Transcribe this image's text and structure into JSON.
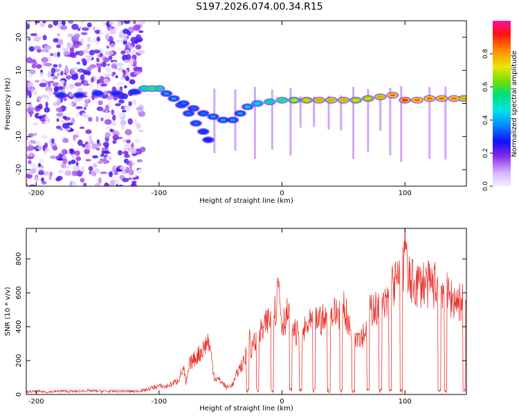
{
  "title": "S197.2026.074.00.34.R15",
  "colors": {
    "snr_line": "#e8342c",
    "background": "#ffffff",
    "axis": "#000000"
  },
  "chart_data": [
    {
      "type": "heatmap",
      "title": "S197.2026.074.00.34.R15",
      "xlabel": "Height of straight line (km)",
      "ylabel": "Frequency (Hz)",
      "xlim": [
        -208,
        150
      ],
      "ylim": [
        -25,
        25
      ],
      "x_ticks": [
        -200,
        -100,
        0,
        100
      ],
      "x_tick_labels": [
        "-200",
        "-100",
        "0",
        "100"
      ],
      "y_ticks": [
        -20,
        -10,
        0,
        10,
        20
      ],
      "y_tick_labels": [
        "-20",
        "-10",
        "0",
        "10",
        "20"
      ],
      "colorbar": {
        "label": "Normalized spectral amplitude",
        "range": [
          0,
          1
        ],
        "ticks": [
          0,
          0.2,
          0.4,
          0.6,
          0.8
        ],
        "tick_labels": [
          "0.0",
          "0.2",
          "0.4",
          "0.6",
          "0.8"
        ]
      },
      "ridge": [
        {
          "x": -180,
          "y": 2.5,
          "amp": 0.3
        },
        {
          "x": -165,
          "y": 2.5,
          "amp": 0.25
        },
        {
          "x": -150,
          "y": 3,
          "amp": 0.3
        },
        {
          "x": -135,
          "y": 3,
          "amp": 0.25
        },
        {
          "x": -120,
          "y": 3.5,
          "amp": 0.3
        },
        {
          "x": -112,
          "y": 4.5,
          "amp": 0.55
        },
        {
          "x": -106,
          "y": 4.5,
          "amp": 0.6
        },
        {
          "x": -100,
          "y": 4.5,
          "amp": 0.55
        },
        {
          "x": -94,
          "y": 3,
          "amp": 0.4
        },
        {
          "x": -88,
          "y": 1.5,
          "amp": 0.4
        },
        {
          "x": -82,
          "y": -0.5,
          "amp": 0.35
        },
        {
          "x": -76,
          "y": -3,
          "amp": 0.35
        },
        {
          "x": -70,
          "y": -6,
          "amp": 0.35
        },
        {
          "x": -64,
          "y": -8.5,
          "amp": 0.3
        },
        {
          "x": -60,
          "y": -11,
          "amp": 0.25
        },
        {
          "x": -80,
          "y": 0,
          "amp": 0.35
        },
        {
          "x": -72,
          "y": -1.5,
          "amp": 0.35
        },
        {
          "x": -64,
          "y": -3,
          "amp": 0.35
        },
        {
          "x": -56,
          "y": -4,
          "amp": 0.4
        },
        {
          "x": -48,
          "y": -5,
          "amp": 0.4
        },
        {
          "x": -40,
          "y": -5,
          "amp": 0.4
        },
        {
          "x": -34,
          "y": -3,
          "amp": 0.4
        },
        {
          "x": -28,
          "y": -1,
          "amp": 0.45
        },
        {
          "x": -20,
          "y": 0,
          "amp": 0.5
        },
        {
          "x": -10,
          "y": 0.5,
          "amp": 0.55
        },
        {
          "x": 0,
          "y": 1,
          "amp": 0.6
        },
        {
          "x": 10,
          "y": 1,
          "amp": 0.7
        },
        {
          "x": 20,
          "y": 1,
          "amp": 0.75
        },
        {
          "x": 30,
          "y": 1,
          "amp": 0.8
        },
        {
          "x": 40,
          "y": 1,
          "amp": 0.8
        },
        {
          "x": 50,
          "y": 1,
          "amp": 0.8
        },
        {
          "x": 60,
          "y": 1,
          "amp": 0.75
        },
        {
          "x": 70,
          "y": 1.5,
          "amp": 0.75
        },
        {
          "x": 80,
          "y": 2,
          "amp": 0.8
        },
        {
          "x": 90,
          "y": 2.5,
          "amp": 0.85
        },
        {
          "x": 100,
          "y": 1,
          "amp": 0.9
        },
        {
          "x": 110,
          "y": 1,
          "amp": 0.85
        },
        {
          "x": 120,
          "y": 1.5,
          "amp": 0.85
        },
        {
          "x": 130,
          "y": 1.5,
          "amp": 0.85
        },
        {
          "x": 140,
          "y": 1.5,
          "amp": 0.85
        },
        {
          "x": 148,
          "y": 1.5,
          "amp": 0.8
        }
      ]
    },
    {
      "type": "line",
      "xlabel": "Height of straight line (km)",
      "ylabel": "SNR (10 * v/v)",
      "xlim": [
        -208,
        150
      ],
      "ylim": [
        0,
        980
      ],
      "x_ticks": [
        -200,
        -100,
        0,
        100
      ],
      "x_tick_labels": [
        "-200",
        "-100",
        "0",
        "100"
      ],
      "y_ticks": [
        0,
        200,
        400,
        600,
        800
      ],
      "y_tick_labels": [
        "0",
        "200",
        "400",
        "600",
        "800"
      ],
      "series": [
        {
          "name": "SNR",
          "x": [
            -208,
            -200,
            -190,
            -180,
            -170,
            -160,
            -150,
            -140,
            -130,
            -120,
            -112,
            -105,
            -100,
            -95,
            -90,
            -85,
            -80,
            -78,
            -75,
            -70,
            -65,
            -60,
            -57,
            -55,
            -50,
            -45,
            -40,
            -35,
            -30,
            -27,
            -25,
            -20,
            -15,
            -10,
            -5,
            -3,
            0,
            5,
            10,
            15,
            20,
            25,
            30,
            35,
            40,
            45,
            50,
            55,
            60,
            65,
            70,
            72,
            75,
            78,
            80,
            85,
            90,
            95,
            98,
            100,
            102,
            105,
            110,
            115,
            120,
            125,
            130,
            135,
            140,
            145,
            150
          ],
          "y": [
            15,
            18,
            15,
            20,
            18,
            22,
            20,
            18,
            20,
            18,
            25,
            40,
            50,
            45,
            60,
            80,
            150,
            60,
            180,
            220,
            260,
            320,
            200,
            100,
            80,
            40,
            60,
            150,
            200,
            420,
            250,
            350,
            380,
            450,
            500,
            680,
            420,
            480,
            380,
            320,
            400,
            420,
            450,
            430,
            470,
            480,
            540,
            380,
            360,
            350,
            400,
            500,
            530,
            480,
            520,
            520,
            650,
            660,
            680,
            960,
            680,
            660,
            650,
            660,
            640,
            650,
            650,
            580,
            560,
            550,
            530
          ]
        }
      ],
      "dropouts_x": [
        -28,
        -20,
        -8,
        7,
        15,
        26,
        38,
        48,
        58,
        70,
        80,
        88,
        97,
        128,
        133,
        148
      ]
    }
  ]
}
